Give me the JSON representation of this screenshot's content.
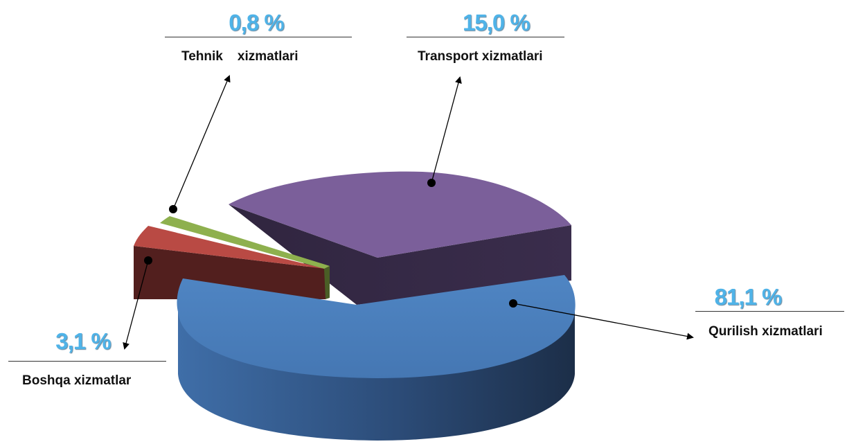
{
  "chart_data": {
    "type": "pie",
    "title": "",
    "series": [
      {
        "label": "Qurilish xizmatlari",
        "value": 81.1,
        "display": "81,1 %",
        "color": "#4a7ebb"
      },
      {
        "label": "Transport xizmatlari",
        "value": 15.0,
        "display": "15,0 %",
        "color": "#7b5f9a"
      },
      {
        "label": "Tehnik    xizmatlari",
        "value": 0.8,
        "display": "0,8 %",
        "color": "#8eb04e"
      },
      {
        "label": "Boshqa xizmatlar",
        "value": 3.1,
        "display": "3,1 %",
        "color": "#b94a44"
      }
    ],
    "style": "3d-exploded-pie",
    "legend": "none"
  }
}
